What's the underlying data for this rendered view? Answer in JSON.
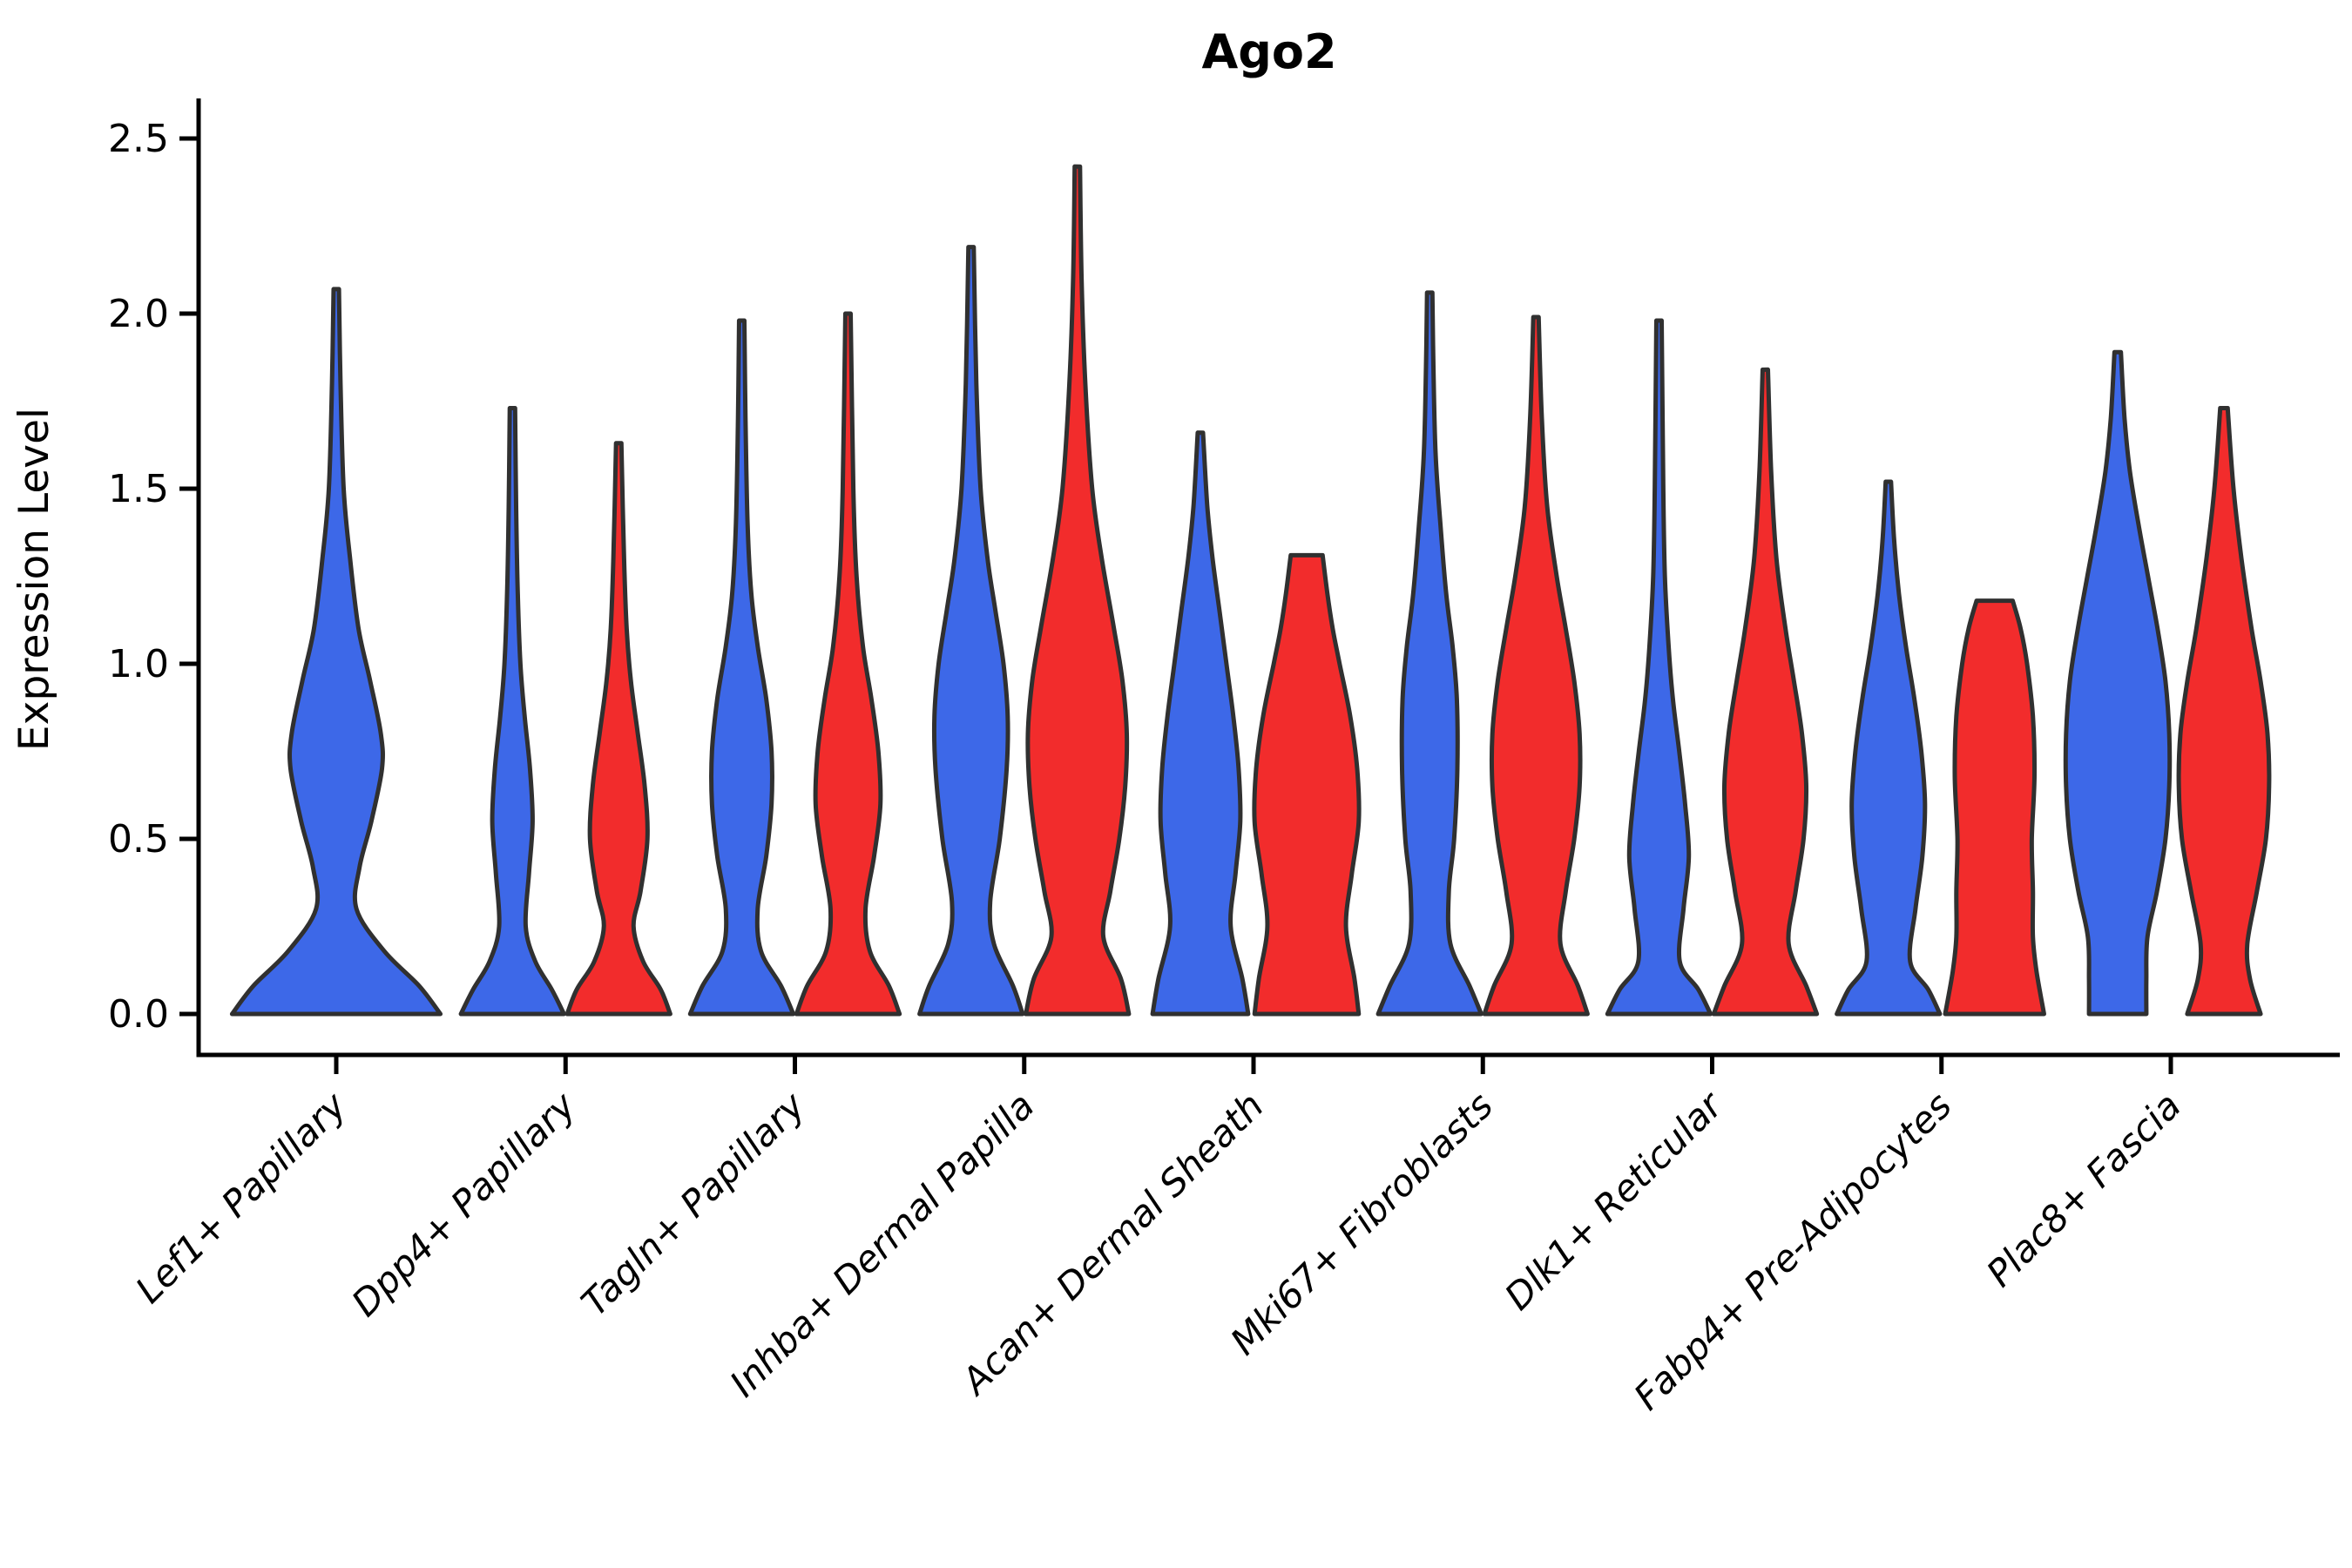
{
  "title": "Ago2",
  "axes": {
    "ylabel": "Expression Level",
    "ytick_labels": [
      "0.0",
      "0.5",
      "1.0",
      "1.5",
      "2.0",
      "2.5"
    ],
    "ytick_values": [
      0.0,
      0.5,
      1.0,
      1.5,
      2.0,
      2.5
    ],
    "ylim": [
      0,
      2.5
    ],
    "grid": false,
    "legend": "none"
  },
  "colors": {
    "blue_fill": "#3D68E8",
    "red_fill": "#F22C2C",
    "violin_stroke": "#303030",
    "axis_color": "#000000",
    "background": "#ffffff"
  },
  "chart_data": {
    "type": "violin",
    "title": "Ago2",
    "ylabel": "Expression Level",
    "categories": [
      "Lef1+ Papillary",
      "Dpp4+ Papillary",
      "Tagln+ Papillary",
      "Inhba+ Dermal Papilla",
      "Acan+ Dermal Sheath",
      "Mki67+ Fibroblasts",
      "Dlk1+ Reticular",
      "Fabp4+ Pre-Adipocytes",
      "Plac8+ Fascia"
    ],
    "groups": [
      {
        "name": "group-blue",
        "color": "#3D68E8"
      },
      {
        "name": "group-red",
        "color": "#F22C2C"
      }
    ],
    "max_expression": {
      "Lef1+ Papillary": {
        "blue": 2.07,
        "red": null
      },
      "Dpp4+ Papillary": {
        "blue": 1.73,
        "red": 1.63
      },
      "Tagln+ Papillary": {
        "blue": 1.98,
        "red": 2.0
      },
      "Inhba+ Dermal Papilla": {
        "blue": 2.19,
        "red": 2.42
      },
      "Acan+ Dermal Sheath": {
        "blue": 1.66,
        "red": 1.31
      },
      "Mki67+ Fibroblasts": {
        "blue": 2.06,
        "red": 1.99
      },
      "Dlk1+ Reticular": {
        "blue": 1.98,
        "red": 1.84
      },
      "Fabp4+ Pre-Adipocytes": {
        "blue": 1.52,
        "red": 1.18
      },
      "Plac8+ Fascia": {
        "blue": 1.89,
        "red": 1.73
      }
    },
    "violins": [
      {
        "category": 0,
        "group": "blue",
        "max": 2.07,
        "flat_top": false,
        "single": true,
        "profile": [
          [
            0,
            0.98
          ],
          [
            0.08,
            0.78
          ],
          [
            0.18,
            0.45
          ],
          [
            0.3,
            0.19
          ],
          [
            0.42,
            0.22
          ],
          [
            0.55,
            0.33
          ],
          [
            0.7,
            0.43
          ],
          [
            0.8,
            0.42
          ],
          [
            0.95,
            0.32
          ],
          [
            1.1,
            0.21
          ],
          [
            1.3,
            0.13
          ],
          [
            1.5,
            0.07
          ],
          [
            1.8,
            0.04
          ],
          [
            2.07,
            0.025
          ]
        ]
      },
      {
        "category": 1,
        "group": "blue",
        "max": 1.73,
        "flat_top": false,
        "single": false,
        "profile": [
          [
            0,
            0.97
          ],
          [
            0.07,
            0.74
          ],
          [
            0.15,
            0.43
          ],
          [
            0.25,
            0.25
          ],
          [
            0.4,
            0.31
          ],
          [
            0.55,
            0.38
          ],
          [
            0.7,
            0.33
          ],
          [
            0.85,
            0.23
          ],
          [
            1.0,
            0.15
          ],
          [
            1.2,
            0.1
          ],
          [
            1.45,
            0.07
          ],
          [
            1.73,
            0.05
          ]
        ]
      },
      {
        "category": 1,
        "group": "red",
        "max": 1.63,
        "flat_top": false,
        "single": false,
        "profile": [
          [
            0,
            0.97
          ],
          [
            0.07,
            0.79
          ],
          [
            0.15,
            0.46
          ],
          [
            0.25,
            0.28
          ],
          [
            0.35,
            0.41
          ],
          [
            0.5,
            0.54
          ],
          [
            0.65,
            0.49
          ],
          [
            0.8,
            0.36
          ],
          [
            0.95,
            0.23
          ],
          [
            1.1,
            0.15
          ],
          [
            1.3,
            0.1
          ],
          [
            1.63,
            0.05
          ]
        ]
      },
      {
        "category": 2,
        "group": "blue",
        "max": 1.98,
        "flat_top": false,
        "single": false,
        "profile": [
          [
            0,
            0.97
          ],
          [
            0.08,
            0.74
          ],
          [
            0.18,
            0.36
          ],
          [
            0.3,
            0.3
          ],
          [
            0.45,
            0.46
          ],
          [
            0.6,
            0.56
          ],
          [
            0.75,
            0.56
          ],
          [
            0.9,
            0.46
          ],
          [
            1.05,
            0.3
          ],
          [
            1.2,
            0.18
          ],
          [
            1.4,
            0.11
          ],
          [
            1.7,
            0.07
          ],
          [
            1.98,
            0.05
          ]
        ]
      },
      {
        "category": 2,
        "group": "red",
        "max": 2.0,
        "flat_top": false,
        "single": false,
        "profile": [
          [
            0,
            0.97
          ],
          [
            0.08,
            0.77
          ],
          [
            0.18,
            0.41
          ],
          [
            0.3,
            0.33
          ],
          [
            0.45,
            0.49
          ],
          [
            0.6,
            0.61
          ],
          [
            0.75,
            0.57
          ],
          [
            0.9,
            0.44
          ],
          [
            1.05,
            0.28
          ],
          [
            1.25,
            0.16
          ],
          [
            1.5,
            0.1
          ],
          [
            2.0,
            0.05
          ]
        ]
      },
      {
        "category": 3,
        "group": "blue",
        "max": 2.19,
        "flat_top": false,
        "single": false,
        "profile": [
          [
            0,
            0.97
          ],
          [
            0.08,
            0.79
          ],
          [
            0.2,
            0.43
          ],
          [
            0.32,
            0.36
          ],
          [
            0.5,
            0.54
          ],
          [
            0.7,
            0.67
          ],
          [
            0.85,
            0.69
          ],
          [
            1.0,
            0.61
          ],
          [
            1.15,
            0.46
          ],
          [
            1.3,
            0.31
          ],
          [
            1.5,
            0.18
          ],
          [
            1.8,
            0.1
          ],
          [
            2.19,
            0.05
          ]
        ]
      },
      {
        "category": 3,
        "group": "red",
        "max": 2.42,
        "flat_top": false,
        "single": false,
        "profile": [
          [
            0,
            0.97
          ],
          [
            0.1,
            0.82
          ],
          [
            0.22,
            0.49
          ],
          [
            0.35,
            0.62
          ],
          [
            0.5,
            0.79
          ],
          [
            0.65,
            0.9
          ],
          [
            0.8,
            0.93
          ],
          [
            0.95,
            0.85
          ],
          [
            1.1,
            0.69
          ],
          [
            1.3,
            0.46
          ],
          [
            1.5,
            0.28
          ],
          [
            1.8,
            0.15
          ],
          [
            2.1,
            0.08
          ],
          [
            2.42,
            0.05
          ]
        ]
      },
      {
        "category": 4,
        "group": "blue",
        "max": 1.66,
        "flat_top": false,
        "single": false,
        "profile": [
          [
            0,
            0.9
          ],
          [
            0.1,
            0.79
          ],
          [
            0.25,
            0.57
          ],
          [
            0.4,
            0.66
          ],
          [
            0.55,
            0.75
          ],
          [
            0.7,
            0.72
          ],
          [
            0.85,
            0.62
          ],
          [
            1.0,
            0.49
          ],
          [
            1.15,
            0.36
          ],
          [
            1.3,
            0.23
          ],
          [
            1.45,
            0.13
          ],
          [
            1.66,
            0.05
          ]
        ]
      },
      {
        "category": 4,
        "group": "red",
        "max": 1.31,
        "flat_top": true,
        "single": false,
        "profile": [
          [
            0,
            0.98
          ],
          [
            0.1,
            0.9
          ],
          [
            0.25,
            0.74
          ],
          [
            0.4,
            0.85
          ],
          [
            0.55,
            0.98
          ],
          [
            0.7,
            0.95
          ],
          [
            0.85,
            0.82
          ],
          [
            1.0,
            0.62
          ],
          [
            1.1,
            0.49
          ],
          [
            1.2,
            0.39
          ],
          [
            1.31,
            0.3
          ]
        ]
      },
      {
        "category": 5,
        "group": "blue",
        "max": 2.06,
        "flat_top": false,
        "single": false,
        "profile": [
          [
            0,
            0.97
          ],
          [
            0.08,
            0.75
          ],
          [
            0.2,
            0.39
          ],
          [
            0.35,
            0.36
          ],
          [
            0.5,
            0.46
          ],
          [
            0.7,
            0.52
          ],
          [
            0.9,
            0.51
          ],
          [
            1.05,
            0.43
          ],
          [
            1.2,
            0.31
          ],
          [
            1.4,
            0.2
          ],
          [
            1.6,
            0.11
          ],
          [
            1.85,
            0.07
          ],
          [
            2.06,
            0.05
          ]
        ]
      },
      {
        "category": 5,
        "group": "red",
        "max": 1.99,
        "flat_top": false,
        "single": false,
        "profile": [
          [
            0,
            0.97
          ],
          [
            0.08,
            0.79
          ],
          [
            0.2,
            0.46
          ],
          [
            0.35,
            0.56
          ],
          [
            0.5,
            0.72
          ],
          [
            0.65,
            0.82
          ],
          [
            0.8,
            0.82
          ],
          [
            0.95,
            0.72
          ],
          [
            1.1,
            0.56
          ],
          [
            1.25,
            0.39
          ],
          [
            1.45,
            0.21
          ],
          [
            1.7,
            0.11
          ],
          [
            1.99,
            0.05
          ]
        ]
      },
      {
        "category": 6,
        "group": "blue",
        "max": 1.98,
        "flat_top": false,
        "single": false,
        "profile": [
          [
            0,
            0.97
          ],
          [
            0.07,
            0.74
          ],
          [
            0.15,
            0.39
          ],
          [
            0.3,
            0.46
          ],
          [
            0.45,
            0.56
          ],
          [
            0.6,
            0.49
          ],
          [
            0.75,
            0.38
          ],
          [
            0.9,
            0.26
          ],
          [
            1.05,
            0.18
          ],
          [
            1.25,
            0.11
          ],
          [
            1.5,
            0.08
          ],
          [
            1.98,
            0.05
          ]
        ]
      },
      {
        "category": 6,
        "group": "red",
        "max": 1.84,
        "flat_top": false,
        "single": false,
        "profile": [
          [
            0,
            0.97
          ],
          [
            0.08,
            0.77
          ],
          [
            0.2,
            0.44
          ],
          [
            0.35,
            0.57
          ],
          [
            0.5,
            0.72
          ],
          [
            0.65,
            0.77
          ],
          [
            0.8,
            0.69
          ],
          [
            0.95,
            0.54
          ],
          [
            1.1,
            0.38
          ],
          [
            1.3,
            0.21
          ],
          [
            1.55,
            0.11
          ],
          [
            1.84,
            0.05
          ]
        ]
      },
      {
        "category": 7,
        "group": "blue",
        "max": 1.52,
        "flat_top": false,
        "single": false,
        "profile": [
          [
            0,
            0.97
          ],
          [
            0.07,
            0.75
          ],
          [
            0.15,
            0.41
          ],
          [
            0.3,
            0.51
          ],
          [
            0.45,
            0.64
          ],
          [
            0.6,
            0.69
          ],
          [
            0.75,
            0.62
          ],
          [
            0.9,
            0.49
          ],
          [
            1.05,
            0.33
          ],
          [
            1.2,
            0.2
          ],
          [
            1.35,
            0.11
          ],
          [
            1.52,
            0.05
          ]
        ]
      },
      {
        "category": 7,
        "group": "red",
        "max": 1.18,
        "flat_top": true,
        "single": false,
        "profile": [
          [
            0,
            0.93
          ],
          [
            0.12,
            0.79
          ],
          [
            0.22,
            0.72
          ],
          [
            0.35,
            0.72
          ],
          [
            0.5,
            0.7
          ],
          [
            0.68,
            0.75
          ],
          [
            0.85,
            0.72
          ],
          [
            1.0,
            0.61
          ],
          [
            1.1,
            0.49
          ],
          [
            1.18,
            0.34
          ]
        ]
      },
      {
        "category": 8,
        "group": "blue",
        "max": 1.89,
        "flat_top": false,
        "single": false,
        "profile": [
          [
            0,
            0.54
          ],
          [
            0.1,
            0.54
          ],
          [
            0.22,
            0.56
          ],
          [
            0.35,
            0.74
          ],
          [
            0.5,
            0.9
          ],
          [
            0.65,
            0.97
          ],
          [
            0.8,
            0.97
          ],
          [
            0.95,
            0.9
          ],
          [
            1.1,
            0.75
          ],
          [
            1.25,
            0.57
          ],
          [
            1.4,
            0.39
          ],
          [
            1.55,
            0.23
          ],
          [
            1.7,
            0.13
          ],
          [
            1.89,
            0.06
          ]
        ]
      },
      {
        "category": 8,
        "group": "red",
        "max": 1.73,
        "flat_top": false,
        "single": false,
        "profile": [
          [
            0,
            0.69
          ],
          [
            0.1,
            0.49
          ],
          [
            0.2,
            0.44
          ],
          [
            0.35,
            0.62
          ],
          [
            0.5,
            0.79
          ],
          [
            0.65,
            0.85
          ],
          [
            0.8,
            0.82
          ],
          [
            0.95,
            0.69
          ],
          [
            1.1,
            0.52
          ],
          [
            1.3,
            0.33
          ],
          [
            1.5,
            0.18
          ],
          [
            1.73,
            0.07
          ]
        ]
      }
    ]
  }
}
